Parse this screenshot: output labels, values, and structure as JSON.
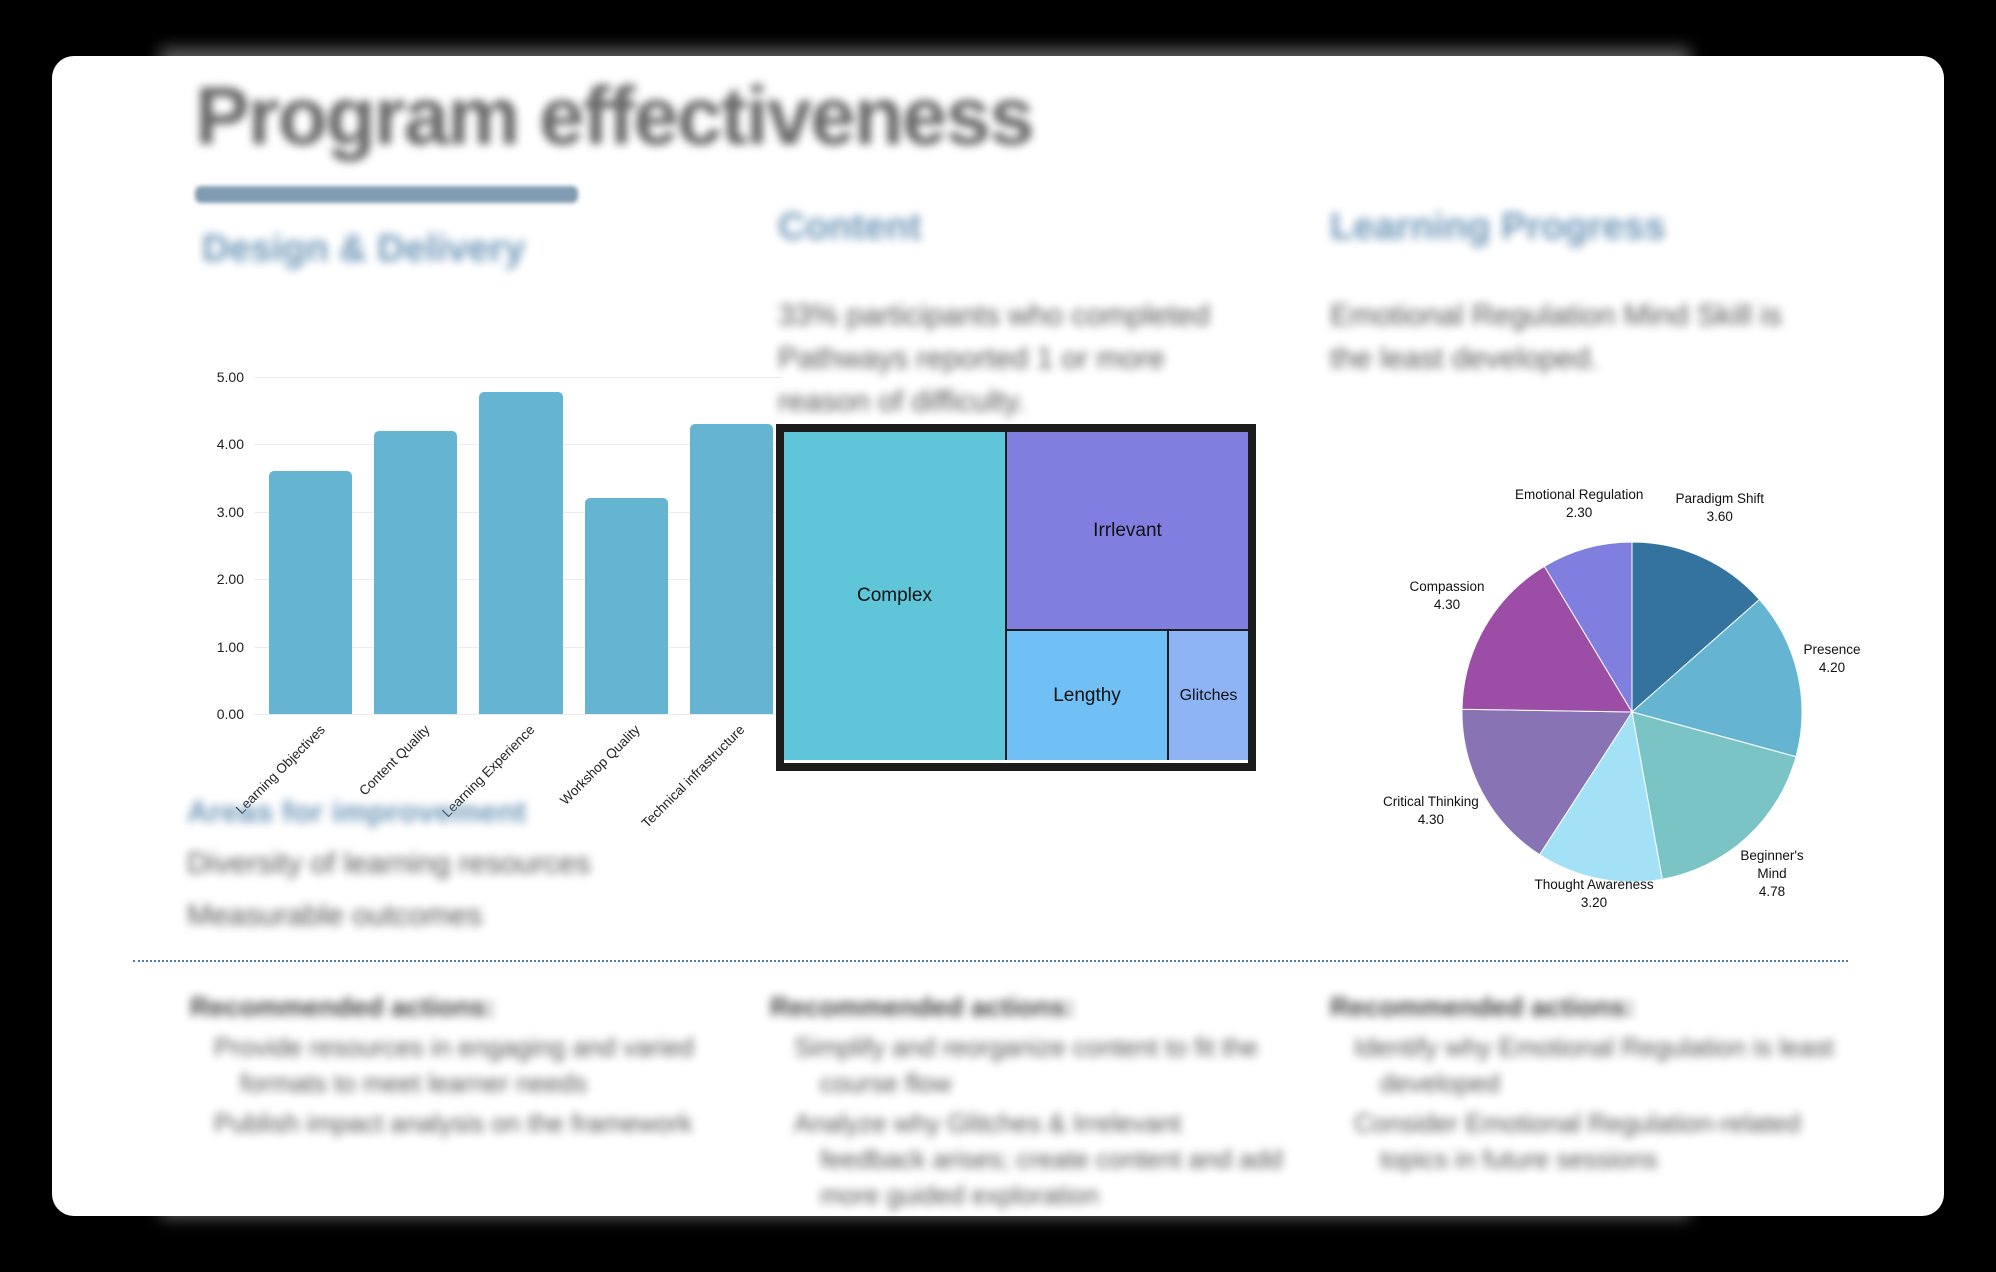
{
  "page": {
    "title": "Program effectiveness"
  },
  "design_delivery": {
    "heading": "Design & Delivery",
    "areas_heading": "Areas for improvement",
    "areas": [
      "Diversity of learning resources",
      "Measurable outcomes"
    ]
  },
  "content": {
    "heading": "Content",
    "summary": "33% participants who completed Pathways reported 1 or more reason of difficulty."
  },
  "learning_progress": {
    "heading": "Learning Progress",
    "summary": "Emotional Regulation Mind Skill is the least developed."
  },
  "recommendations": [
    {
      "title": "Recommended actions:",
      "items": [
        "Provide resources in engaging and varied formats to meet learner needs",
        "Publish impact analysis on the framework"
      ]
    },
    {
      "title": "Recommended actions:",
      "items": [
        "Simplify and reorganize content to fit the course flow",
        "Analyze why Glitches & Irrelevant feedback arises; create content and add more guided exploration"
      ]
    },
    {
      "title": "Recommended actions:",
      "items": [
        "Identify why Emotional Regulation is least developed",
        "Consider Emotional Regulation-related topics in future sessions"
      ]
    }
  ],
  "chart_data": [
    {
      "type": "bar",
      "title": "",
      "xlabel": "",
      "ylabel": "",
      "categories": [
        "Learning Objectives",
        "Content Quality",
        "Learning Experience",
        "Workshop Quality",
        "Technical infrastructure"
      ],
      "values": [
        3.6,
        4.2,
        4.78,
        3.2,
        4.3
      ],
      "ylim": [
        0,
        5
      ],
      "yticks": [
        "0.00",
        "1.00",
        "2.00",
        "3.00",
        "4.00",
        "5.00"
      ],
      "grid": true,
      "color": "#64b4d2"
    },
    {
      "type": "treemap",
      "title": "",
      "labels": [
        "Complex",
        "Irrlevant",
        "Lengthy",
        "Glitches"
      ],
      "relative_areas": [
        47,
        30,
        16,
        7
      ],
      "colors": [
        "#5ec6d8",
        "#807fe0",
        "#70bff5",
        "#8fb4f5"
      ]
    },
    {
      "type": "pie",
      "title": "",
      "labels": [
        "Paradigm Shift",
        "Presence",
        "Beginner's Mind",
        "Thought Awareness",
        "Critical Thinking",
        "Compassion",
        "Emotional Regulation"
      ],
      "values": [
        3.6,
        4.2,
        4.78,
        3.2,
        4.3,
        4.3,
        2.3
      ],
      "value_labels": [
        "3.60",
        "4.20",
        "4.78",
        "3.20",
        "4.30",
        "4.30",
        "2.30"
      ],
      "colors": [
        "#33739e",
        "#64b4d2",
        "#7bc4c6",
        "#a3e1f7",
        "#8873b5",
        "#9c4ea6",
        "#807fe0"
      ]
    }
  ]
}
